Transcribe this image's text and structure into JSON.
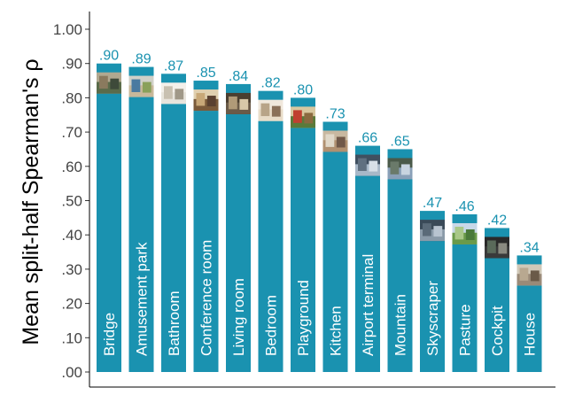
{
  "chart_data": {
    "type": "bar",
    "title": "",
    "xlabel": "",
    "ylabel": "Mean split-half Spearman's  ρ",
    "ylim": [
      0,
      1.0
    ],
    "yticks": [
      0.0,
      0.1,
      0.2,
      0.3,
      0.4,
      0.5,
      0.6,
      0.7,
      0.8,
      0.9,
      1.0
    ],
    "ytick_labels": [
      ".00",
      ".10",
      ".20",
      ".30",
      ".40",
      ".50",
      ".60",
      ".70",
      ".80",
      ".90",
      "1.00"
    ],
    "grid": false,
    "categories": [
      "Bridge",
      "Amusement park",
      "Bathroom",
      "Conference room",
      "Living room",
      "Bedroom",
      "Playground",
      "Kitchen",
      "Airport terminal",
      "Mountain",
      "Skyscraper",
      "Pasture",
      "Cockpit",
      "House"
    ],
    "values": [
      0.9,
      0.89,
      0.87,
      0.85,
      0.84,
      0.82,
      0.8,
      0.73,
      0.66,
      0.65,
      0.47,
      0.46,
      0.42,
      0.34
    ],
    "value_labels": [
      ".90",
      ".89",
      ".87",
      ".85",
      ".84",
      ".82",
      ".80",
      ".73",
      ".66",
      ".65",
      ".47",
      ".46",
      ".42",
      ".34"
    ],
    "thumbnails": [
      "bridge",
      "amusement-park",
      "bathroom",
      "conference-room",
      "living-room",
      "bedroom",
      "playground",
      "kitchen",
      "airport-terminal",
      "mountain",
      "skyscraper",
      "pasture",
      "cockpit",
      "house"
    ],
    "colors": {
      "bar": "#1a92b0",
      "value_label": "#1a92b0",
      "bar_text": "#ffffff",
      "axis": "#000000"
    }
  }
}
